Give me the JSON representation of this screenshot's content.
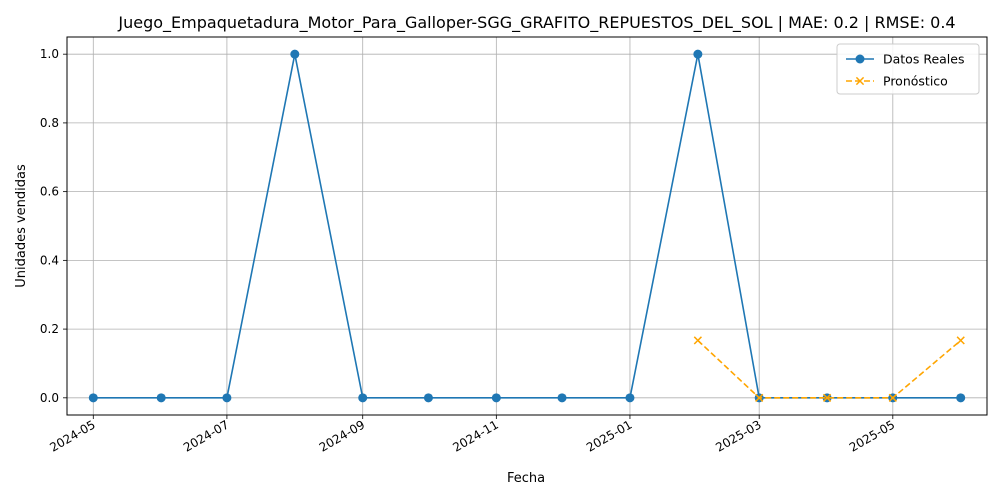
{
  "chart_data": {
    "type": "line",
    "title": "Juego_Empaquetadura_Motor_Para_Galloper-SGG_GRAFITO_REPUESTOS_DEL_SOL | MAE: 0.2 | RMSE: 0.4",
    "xlabel": "Fecha",
    "ylabel": "Unidades vendidas",
    "x_ticks": [
      "2024-05",
      "2024-07",
      "2024-09",
      "2024-11",
      "2025-01",
      "2025-03",
      "2025-05"
    ],
    "y_ticks": [
      "0.0",
      "0.2",
      "0.4",
      "0.6",
      "0.8",
      "1.0"
    ],
    "ylim": [
      -0.05,
      1.05
    ],
    "xlim": [
      "2024-04-19",
      "2025-06-13"
    ],
    "grid": true,
    "legend_position": "top-right",
    "series": [
      {
        "name": "Datos Reales",
        "color": "#1f77b4",
        "style": "solid",
        "marker": "circle",
        "x": [
          "2024-05-01",
          "2024-06-01",
          "2024-07-01",
          "2024-08-01",
          "2024-09-01",
          "2024-10-01",
          "2024-11-01",
          "2024-12-01",
          "2025-01-01",
          "2025-02-01",
          "2025-03-01",
          "2025-04-01",
          "2025-05-01",
          "2025-06-01"
        ],
        "values": [
          0,
          0,
          0,
          1,
          0,
          0,
          0,
          0,
          0,
          1,
          0,
          0,
          0,
          0
        ]
      },
      {
        "name": "Pronóstico",
        "color": "#ffa500",
        "style": "dashed",
        "marker": "x",
        "x": [
          "2025-02-01",
          "2025-03-01",
          "2025-04-01",
          "2025-05-01",
          "2025-06-01"
        ],
        "values": [
          0.167,
          0,
          0,
          0,
          0.167
        ]
      }
    ]
  }
}
